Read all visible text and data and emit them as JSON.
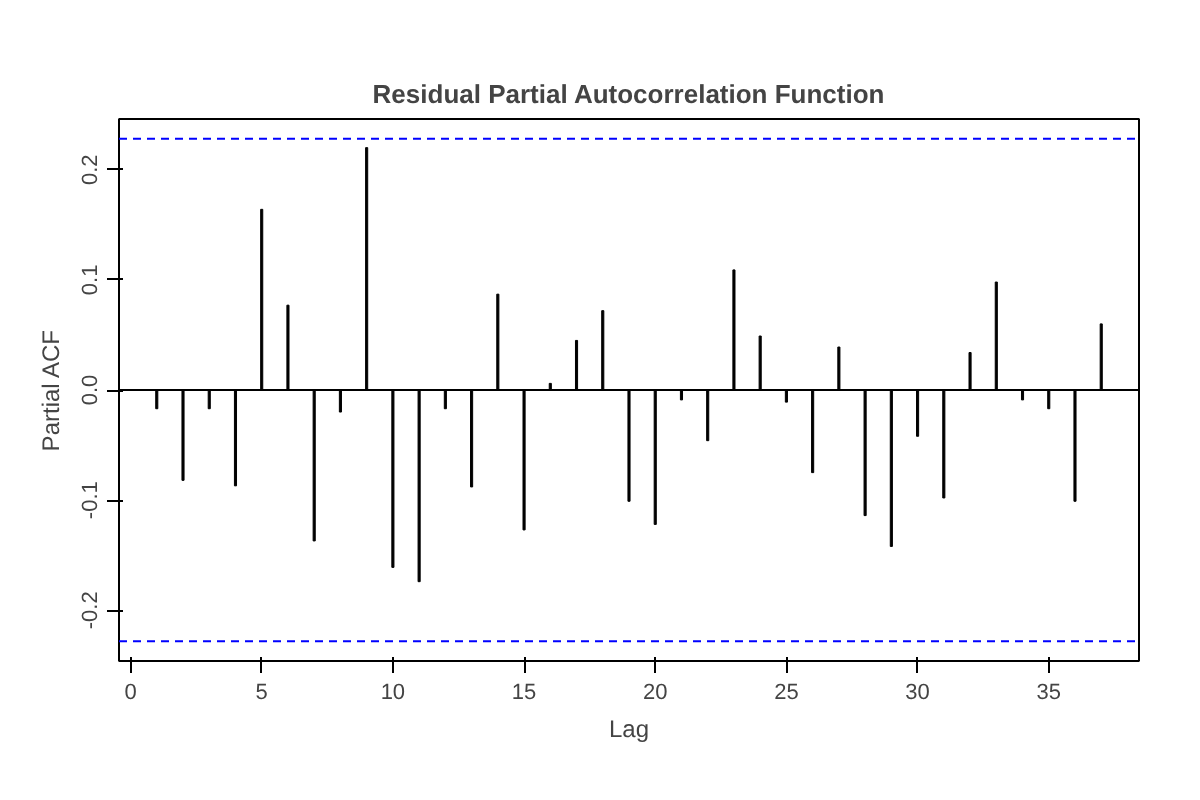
{
  "chart_data": {
    "type": "bar",
    "title": "Residual Partial Autocorrelation Function",
    "xlabel": "Lag",
    "ylabel": "Partial ACF",
    "x": [
      1,
      2,
      3,
      4,
      5,
      6,
      7,
      8,
      9,
      10,
      11,
      12,
      13,
      14,
      15,
      16,
      17,
      18,
      19,
      20,
      21,
      22,
      23,
      24,
      25,
      26,
      27,
      28,
      29,
      30,
      31,
      32,
      33,
      34,
      35,
      36,
      37
    ],
    "values": [
      -0.017,
      -0.082,
      -0.017,
      -0.087,
      0.164,
      0.077,
      -0.137,
      -0.02,
      0.22,
      -0.161,
      -0.174,
      -0.017,
      -0.088,
      0.087,
      -0.127,
      0.006,
      0.045,
      0.072,
      -0.101,
      -0.122,
      -0.009,
      -0.046,
      0.109,
      0.049,
      -0.011,
      -0.075,
      0.039,
      -0.114,
      -0.142,
      -0.042,
      -0.098,
      0.034,
      0.098,
      -0.009,
      -0.017,
      -0.101,
      0.06
    ],
    "color": "#000000",
    "xlim": [
      -0.44,
      38.44
    ],
    "ylim": [
      -0.246,
      0.246
    ],
    "xticks": [
      0,
      5,
      10,
      15,
      20,
      25,
      30,
      35
    ],
    "yticks": [
      {
        "value": -0.2,
        "label": "-0.2"
      },
      {
        "value": -0.1,
        "label": "-0.1"
      },
      {
        "value": 0,
        "label": "0.0"
      },
      {
        "value": 0.1,
        "label": "0.1"
      },
      {
        "value": 0.2,
        "label": "0.2"
      }
    ],
    "ref_lines": [
      {
        "axis": "y",
        "value": 0.228,
        "color": "#0000ff",
        "line_style": "dashed"
      },
      {
        "axis": "y",
        "value": -0.228,
        "color": "#0000ff",
        "line_style": "dashed"
      },
      {
        "axis": "y",
        "value": 0,
        "color": "#000000",
        "line_style": "solid"
      }
    ],
    "grid": false
  }
}
